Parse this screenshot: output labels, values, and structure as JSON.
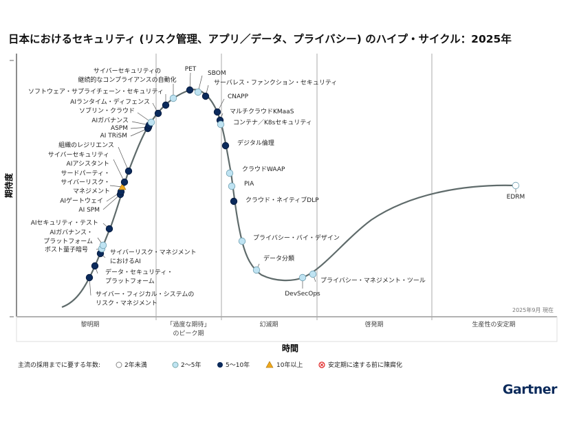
{
  "title": "日本におけるセキュリティ (リスク管理、アプリ／データ、プライバシー) のハイプ・サイクル：2025年",
  "y_axis_label": "期待度",
  "x_axis_label": "時間",
  "as_of": "2025年9月 現在",
  "phases": [
    "黎明期",
    "「過度な期待」",
    "のピーク期",
    "幻滅期",
    "啓発期",
    "生産性の安定期"
  ],
  "legend": {
    "title": "主流の採用までに要する年数:",
    "items": [
      {
        "label": "2年未満",
        "symbol": "white-circle",
        "color": "#ffffff"
      },
      {
        "label": "2〜5年",
        "symbol": "light-blue-circle",
        "color": "#bfe3f2"
      },
      {
        "label": "5〜10年",
        "symbol": "dark-blue-circle",
        "color": "#0b2a5b"
      },
      {
        "label": "10年以上",
        "symbol": "orange-triangle",
        "color": "#f0a81c"
      },
      {
        "label": "安定期に達する前に陳腐化",
        "symbol": "red-x-circle",
        "color": "#e02020"
      }
    ]
  },
  "brand": "Gartner",
  "technologies": [
    {
      "lines": [
        "サイバー・フィジカル・システムの",
        "リスク・マネジメント"
      ],
      "years": "5〜10年"
    },
    {
      "lines": [
        "データ・セキュリティ・",
        "プラットフォーム"
      ],
      "years": "5〜10年"
    },
    {
      "lines": [
        "サイバーリスク・マネジメント",
        "におけるAI"
      ],
      "years": "5〜10年"
    },
    {
      "lines": [
        "ポスト量子暗号"
      ],
      "years": "2〜5年"
    },
    {
      "lines": [
        "AIガバナンス・",
        "プラットフォーム"
      ],
      "years": "2〜5年"
    },
    {
      "lines": [
        "AIセキュリティ・テスト"
      ],
      "years": "5〜10年"
    },
    {
      "lines": [
        "AI SPM"
      ],
      "years": "5〜10年"
    },
    {
      "lines": [
        "AIゲートウェイ"
      ],
      "years": "5〜10年"
    },
    {
      "lines": [
        "サードパーティ・",
        "サイバーリスク・",
        "マネジメント"
      ],
      "years": "10年以上"
    },
    {
      "lines": [
        "サイバーセキュリティ",
        "AIアシスタント"
      ],
      "years": "5〜10年"
    },
    {
      "lines": [
        "組織のレジリエンス"
      ],
      "years": "5〜10年"
    },
    {
      "lines": [
        "AI TRiSM"
      ],
      "years": "5〜10年"
    },
    {
      "lines": [
        "ASPM"
      ],
      "years": "5〜10年"
    },
    {
      "lines": [
        "AIガバナンス"
      ],
      "years": "5〜10年"
    },
    {
      "lines": [
        "ソブリン・クラウド"
      ],
      "years": "2〜5年"
    },
    {
      "lines": [
        "AIランタイム・ディフェンス"
      ],
      "years": "5〜10年"
    },
    {
      "lines": [
        "ソフトウェア・サプライチェーン・セキュリティ"
      ],
      "years": "5〜10年"
    },
    {
      "lines": [
        "サイバーセキュリティの",
        "継続的なコンプライアンスの自動化"
      ],
      "years": "2〜5年"
    },
    {
      "lines": [
        "PET"
      ],
      "years": "5〜10年"
    },
    {
      "lines": [
        "SBOM"
      ],
      "years": "2〜5年"
    },
    {
      "lines": [
        "サーバレス・ファンクション・セキュリティ"
      ],
      "years": "5〜10年"
    },
    {
      "lines": [
        "CNAPP"
      ],
      "years": "5〜10年"
    },
    {
      "lines": [
        "マルチクラウドKMaaS"
      ],
      "years": "5〜10年"
    },
    {
      "lines": [
        "コンテナ／K8sセキュリティ"
      ],
      "years": "2〜5年"
    },
    {
      "lines": [
        "デジタル倫理"
      ],
      "years": "5〜10年"
    },
    {
      "lines": [
        "クラウドWAAP"
      ],
      "years": "2〜5年"
    },
    {
      "lines": [
        "PIA"
      ],
      "years": "2〜5年"
    },
    {
      "lines": [
        "クラウド・ネイティブDLP"
      ],
      "years": "5〜10年"
    },
    {
      "lines": [
        "プライバシー・バイ・デザイン"
      ],
      "years": "2〜5年"
    },
    {
      "lines": [
        "データ分類"
      ],
      "years": "2〜5年"
    },
    {
      "lines": [
        "DevSecOps"
      ],
      "years": "2〜5年"
    },
    {
      "lines": [
        "プライバシー・マネジメント・ツール"
      ],
      "years": "2〜5年"
    },
    {
      "lines": [
        "EDRM"
      ],
      "years": "2年未満"
    }
  ]
}
